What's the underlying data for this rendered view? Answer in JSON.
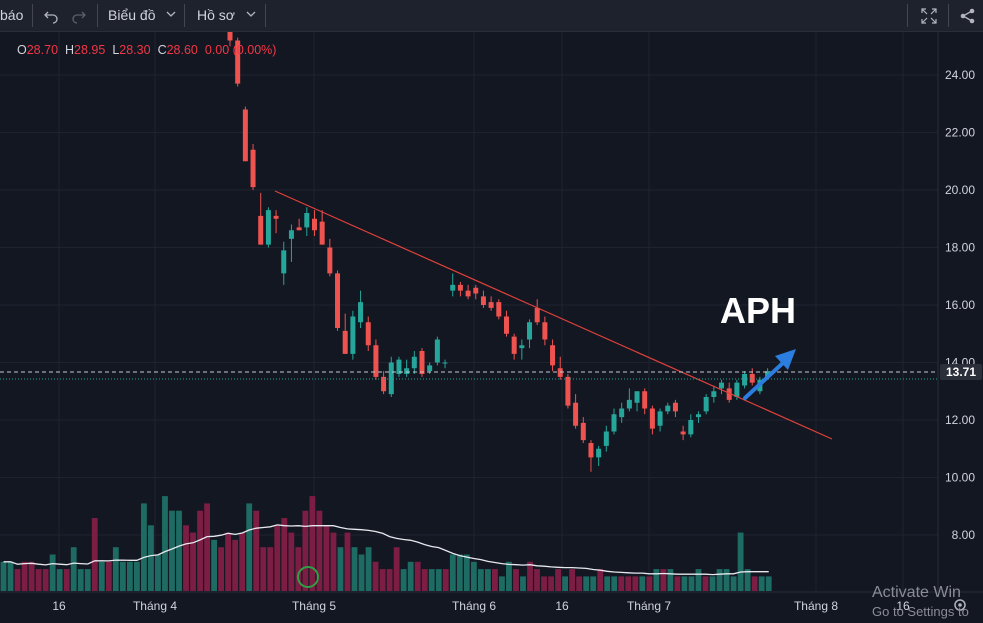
{
  "toolbar": {
    "left_text": "báo",
    "undo_icon": "undo-icon",
    "redo_icon": "redo-icon",
    "chart_menu": "Biểu đồ",
    "profile_menu": "Hồ sơ",
    "fullscreen_icon": "fullscreen-icon",
    "share_icon": "share-icon"
  },
  "ohlc": {
    "o_label": "O",
    "o_value": "28.70",
    "h_label": "H",
    "h_value": "28.95",
    "l_label": "L",
    "l_value": "28.30",
    "c_label": "C",
    "c_value": "28.60",
    "change": "0.00 (0.00%)"
  },
  "colors": {
    "up": "#26a69a",
    "down": "#ef5350",
    "vol_up": "#1e6b63",
    "vol_down": "#7c1d44",
    "trendline": "#e0413a",
    "arrow": "#2c7de0",
    "price_badge": "#2b2f3a"
  },
  "annotation": {
    "ticker": "APH",
    "arrow_icon": "up-right-arrow-icon",
    "volume_marker_icon": "circle-marker-icon"
  },
  "watermark": {
    "line1": "Activate Win",
    "line2": "Go to Settings to"
  },
  "chart_data": {
    "type": "candlestick",
    "y_ticks": [
      "24.00",
      "22.00",
      "20.00",
      "18.00",
      "16.00",
      "14.00",
      "12.00",
      "10.00",
      "8.00"
    ],
    "y_range": [
      7.0,
      25.9
    ],
    "current_price": "13.71",
    "x_ticks": [
      "16",
      "Tháng 4",
      "Tháng 5",
      "Tháng 6",
      "16",
      "Tháng 7",
      "Tháng 8",
      "16"
    ],
    "candles": [
      [
        26.0,
        26.2,
        25.0,
        25.2
      ],
      [
        25.2,
        25.3,
        23.6,
        23.7
      ],
      [
        22.8,
        22.9,
        21.0,
        21.0
      ],
      [
        21.4,
        21.6,
        20.0,
        20.1
      ],
      [
        19.1,
        19.9,
        18.1,
        18.1
      ],
      [
        18.1,
        19.4,
        18.0,
        19.3
      ],
      [
        19.1,
        19.3,
        18.5,
        19.0
      ],
      [
        17.1,
        18.2,
        16.7,
        17.9
      ],
      [
        18.3,
        18.8,
        17.5,
        18.6
      ],
      [
        18.7,
        19.0,
        18.6,
        18.6
      ],
      [
        18.7,
        19.4,
        18.4,
        19.2
      ],
      [
        19.0,
        19.3,
        18.4,
        18.6
      ],
      [
        18.9,
        19.3,
        18.1,
        18.1
      ],
      [
        18.0,
        18.3,
        17.0,
        17.1
      ],
      [
        17.1,
        17.2,
        15.1,
        15.2
      ],
      [
        15.1,
        15.7,
        14.3,
        14.3
      ],
      [
        14.3,
        15.8,
        14.1,
        15.6
      ],
      [
        15.4,
        16.5,
        15.2,
        16.1
      ],
      [
        15.4,
        15.6,
        14.4,
        14.6
      ],
      [
        14.6,
        14.8,
        13.4,
        13.5
      ],
      [
        13.5,
        13.7,
        12.9,
        13.0
      ],
      [
        12.9,
        14.2,
        12.8,
        14.0
      ],
      [
        13.6,
        14.2,
        13.5,
        14.1
      ],
      [
        13.6,
        14.1,
        13.5,
        13.8
      ],
      [
        13.8,
        14.4,
        13.6,
        14.2
      ],
      [
        14.4,
        14.5,
        13.5,
        13.6
      ],
      [
        13.7,
        14.0,
        13.6,
        13.9
      ],
      [
        14.0,
        14.9,
        13.9,
        14.8
      ],
      [
        14.0,
        14.1,
        13.8,
        14.0
      ],
      [
        16.5,
        17.1,
        16.3,
        16.7
      ],
      [
        16.7,
        16.8,
        16.3,
        16.5
      ],
      [
        16.5,
        16.7,
        16.2,
        16.3
      ],
      [
        16.6,
        16.7,
        16.2,
        16.4
      ],
      [
        16.3,
        16.5,
        15.9,
        16.0
      ],
      [
        16.1,
        16.3,
        15.8,
        15.9
      ],
      [
        16.1,
        16.2,
        15.5,
        15.6
      ],
      [
        15.6,
        15.8,
        14.9,
        15.0
      ],
      [
        14.9,
        15.0,
        14.1,
        14.3
      ],
      [
        14.5,
        14.8,
        14.1,
        14.6
      ],
      [
        14.8,
        15.5,
        14.5,
        15.4
      ],
      [
        15.9,
        16.2,
        15.3,
        15.4
      ],
      [
        15.4,
        15.6,
        14.6,
        14.8
      ],
      [
        14.6,
        14.8,
        13.7,
        13.9
      ],
      [
        13.8,
        14.2,
        13.4,
        13.5
      ],
      [
        13.5,
        13.6,
        12.4,
        12.5
      ],
      [
        12.6,
        12.9,
        11.7,
        11.8
      ],
      [
        11.9,
        12.1,
        11.2,
        11.3
      ],
      [
        11.2,
        11.3,
        10.2,
        10.7
      ],
      [
        10.7,
        11.1,
        10.4,
        11.0
      ],
      [
        11.1,
        11.8,
        10.9,
        11.6
      ],
      [
        11.6,
        12.4,
        11.5,
        12.2
      ],
      [
        12.1,
        12.6,
        11.9,
        12.4
      ],
      [
        12.4,
        13.1,
        12.3,
        12.7
      ],
      [
        12.6,
        13.0,
        12.3,
        13.0
      ],
      [
        13.0,
        13.1,
        12.2,
        12.4
      ],
      [
        12.4,
        12.5,
        11.5,
        11.7
      ],
      [
        11.8,
        12.4,
        11.6,
        12.3
      ],
      [
        12.3,
        12.6,
        12.2,
        12.5
      ],
      [
        12.6,
        12.7,
        12.1,
        12.3
      ],
      [
        11.6,
        11.8,
        11.3,
        11.5
      ],
      [
        11.5,
        12.2,
        11.4,
        12.0
      ],
      [
        12.1,
        12.3,
        11.9,
        12.2
      ],
      [
        12.3,
        12.9,
        12.2,
        12.8
      ],
      [
        12.8,
        13.2,
        12.6,
        13.0
      ],
      [
        13.1,
        13.4,
        12.9,
        13.3
      ],
      [
        13.1,
        13.3,
        12.6,
        12.7
      ],
      [
        12.8,
        13.4,
        12.7,
        13.3
      ],
      [
        13.2,
        13.7,
        13.1,
        13.6
      ],
      [
        13.6,
        13.8,
        13.2,
        13.3
      ],
      [
        13.0,
        13.5,
        12.9,
        13.4
      ],
      [
        13.5,
        13.8,
        13.4,
        13.7
      ]
    ],
    "volume_bars": [
      [
        0,
        4
      ],
      [
        0,
        4
      ],
      [
        1,
        3
      ],
      [
        1,
        4
      ],
      [
        1,
        4
      ],
      [
        1,
        3
      ],
      [
        1,
        3
      ],
      [
        0,
        5
      ],
      [
        0,
        3
      ],
      [
        1,
        3
      ],
      [
        0,
        6
      ],
      [
        0,
        3
      ],
      [
        0,
        3
      ],
      [
        1,
        10
      ],
      [
        0,
        4
      ],
      [
        1,
        4
      ],
      [
        0,
        6
      ],
      [
        0,
        4
      ],
      [
        0,
        4
      ],
      [
        0,
        4
      ],
      [
        0,
        12
      ],
      [
        0,
        9
      ],
      [
        0,
        5
      ],
      [
        0,
        13
      ],
      [
        0,
        11
      ],
      [
        0,
        11
      ],
      [
        1,
        9
      ],
      [
        1,
        8
      ],
      [
        1,
        11
      ],
      [
        1,
        12
      ],
      [
        0,
        7
      ],
      [
        1,
        6
      ],
      [
        1,
        8
      ],
      [
        1,
        7
      ],
      [
        1,
        8
      ],
      [
        0,
        12
      ],
      [
        1,
        11
      ],
      [
        1,
        6
      ],
      [
        1,
        6
      ],
      [
        1,
        9
      ],
      [
        1,
        10
      ],
      [
        1,
        8
      ],
      [
        1,
        6
      ],
      [
        1,
        11
      ],
      [
        1,
        13
      ],
      [
        1,
        11
      ],
      [
        1,
        9
      ],
      [
        1,
        8
      ],
      [
        0,
        6
      ],
      [
        1,
        8
      ],
      [
        0,
        6
      ],
      [
        0,
        5
      ],
      [
        0,
        6
      ],
      [
        1,
        4
      ],
      [
        1,
        3
      ],
      [
        1,
        3
      ],
      [
        1,
        6
      ],
      [
        0,
        3
      ],
      [
        0,
        4
      ],
      [
        1,
        4
      ],
      [
        1,
        3
      ],
      [
        0,
        3
      ],
      [
        0,
        3
      ],
      [
        1,
        3
      ],
      [
        0,
        5
      ],
      [
        0,
        5
      ],
      [
        0,
        5
      ],
      [
        0,
        4
      ],
      [
        0,
        3
      ],
      [
        0,
        3
      ],
      [
        1,
        3
      ],
      [
        0,
        2
      ],
      [
        0,
        4
      ],
      [
        1,
        3
      ],
      [
        0,
        2
      ],
      [
        1,
        4
      ],
      [
        1,
        3
      ],
      [
        1,
        2
      ],
      [
        1,
        2
      ],
      [
        1,
        3
      ],
      [
        0,
        2
      ],
      [
        1,
        3
      ],
      [
        1,
        2
      ],
      [
        0,
        2
      ],
      [
        0,
        2
      ],
      [
        1,
        3
      ],
      [
        0,
        2
      ],
      [
        0,
        2
      ],
      [
        1,
        2
      ],
      [
        1,
        2
      ],
      [
        1,
        2
      ],
      [
        0,
        2
      ],
      [
        1,
        2
      ],
      [
        0,
        3
      ],
      [
        1,
        3
      ],
      [
        0,
        3
      ],
      [
        1,
        2
      ],
      [
        0,
        2
      ],
      [
        0,
        2
      ],
      [
        0,
        3
      ],
      [
        1,
        2
      ],
      [
        0,
        2
      ],
      [
        0,
        3
      ],
      [
        0,
        3
      ],
      [
        0,
        2
      ],
      [
        0,
        8
      ],
      [
        0,
        3
      ],
      [
        1,
        2
      ],
      [
        0,
        2
      ],
      [
        0,
        2
      ]
    ]
  }
}
